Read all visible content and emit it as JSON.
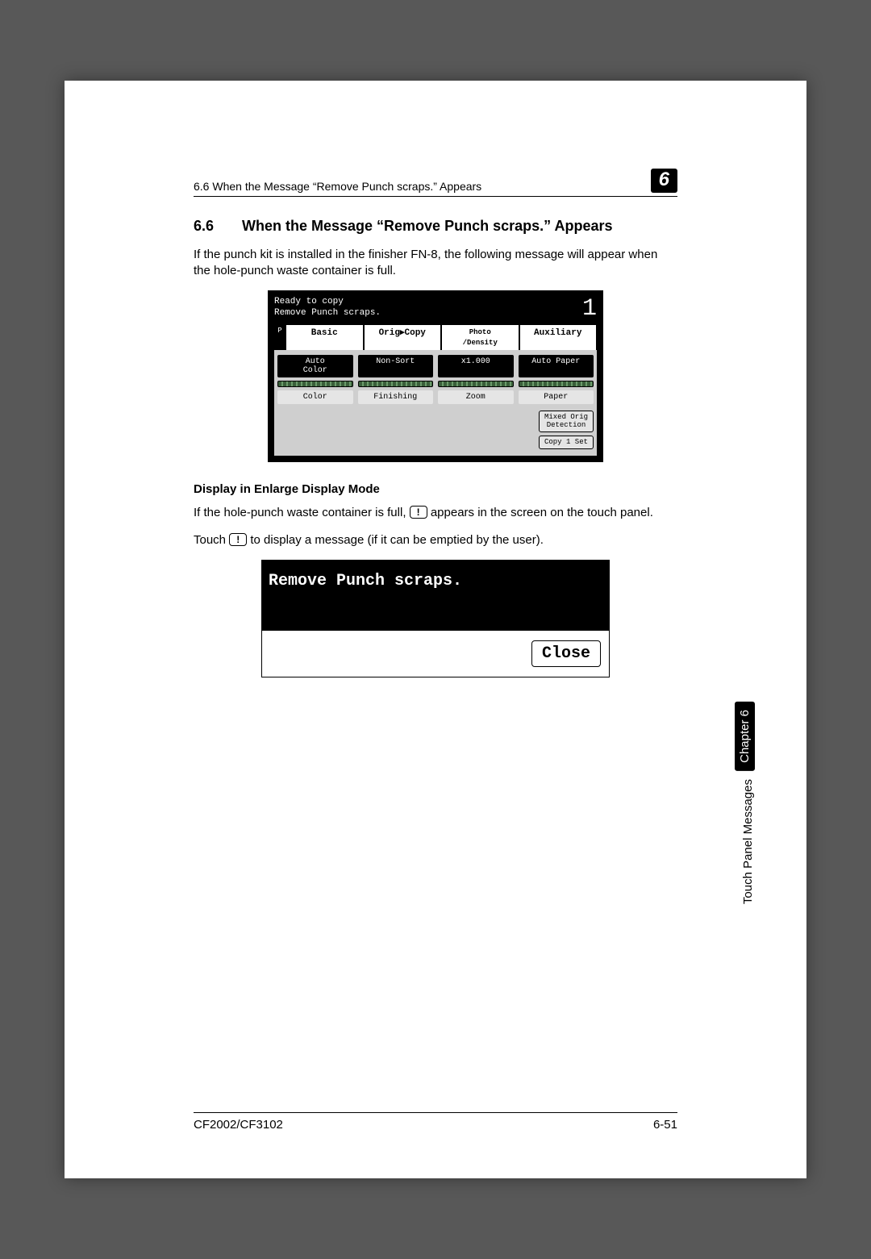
{
  "page": {
    "running_title": "6.6 When the Message “Remove Punch scraps.” Appears",
    "chapter_badge": "6",
    "section_number": "6.6",
    "section_title": "When the Message “Remove Punch scraps.” Appears",
    "intro": "If the punch kit is installed in the finisher FN-8, the following message will appear when the hole-punch waste container is full.",
    "subhead": "Display in Enlarge Display Mode",
    "enlarge_p1_a": "If the hole-punch waste container is full, ",
    "enlarge_p1_b": " appears in the screen on the touch panel.",
    "enlarge_p2_a": "Touch ",
    "enlarge_p2_b": " to display a message (if it can be emptied by the user).",
    "alert_glyph": "!",
    "footer_model": "CF2002/CF3102",
    "footer_page": "6-51",
    "side_chapter": "Chapter 6",
    "side_section": "Touch Panel Messages"
  },
  "lcd": {
    "status_line1": "Ready to copy",
    "status_line2": "Remove Punch scraps.",
    "copy_count": "1",
    "p_flag": "P",
    "tabs": [
      "Basic",
      "Orig▸Copy",
      "Photo\n/Density",
      "Auxiliary"
    ],
    "row1": [
      "Auto\nColor",
      "Non-Sort",
      "x1.000",
      "Auto Paper"
    ],
    "row_labels": [
      "Color",
      "Finishing",
      "Zoom",
      "Paper"
    ],
    "side_btn1": "Mixed Orig\nDetection",
    "side_btn2": "Copy 1 Set"
  },
  "msgbox": {
    "text": "Remove Punch scraps.",
    "close": "Close"
  },
  "style": {
    "page_bg": "#585858",
    "lcd_green": "#3a5f3a"
  }
}
